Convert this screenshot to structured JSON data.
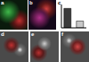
{
  "panel_labels": [
    "a",
    "b",
    "c",
    "d",
    "e",
    "f"
  ],
  "chart_data": {
    "type": "bar",
    "categories": [
      null,
      null
    ],
    "values": [
      1.0,
      0.35
    ],
    "colors": [
      "#3a3a3a",
      "#c8c8c8"
    ],
    "ylim": [
      0,
      1.2
    ],
    "yticks": [
      0,
      0.4,
      0.8,
      1.2
    ],
    "grid": false,
    "tick_labels": false
  }
}
